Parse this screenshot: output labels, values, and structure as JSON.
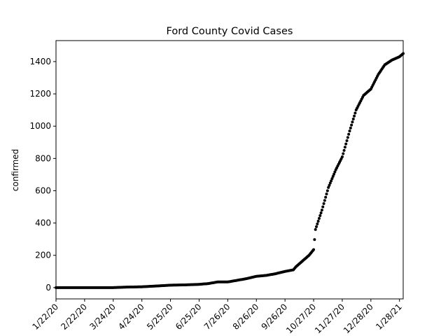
{
  "chart_data": {
    "type": "scatter",
    "title": "Ford County Covid Cases",
    "xlabel": "",
    "ylabel": "confirmed",
    "x_ticks": [
      "1/22/20",
      "2/22/20",
      "3/24/20",
      "4/24/20",
      "5/25/20",
      "6/25/20",
      "7/26/20",
      "8/26/20",
      "9/26/20",
      "10/27/20",
      "11/27/20",
      "12/28/20",
      "1/28/21"
    ],
    "y_ticks": [
      0,
      200,
      400,
      600,
      800,
      1000,
      1200,
      1400
    ],
    "ylim": [
      -70,
      1530
    ],
    "xlim": [
      "1/22/20",
      "2/1/21"
    ],
    "grid": false,
    "marker_color": "#000000",
    "series": [
      {
        "name": "",
        "x": [
          "1/22/20",
          "3/24/20",
          "4/7/20",
          "4/24/20",
          "5/10/20",
          "5/25/20",
          "6/10/20",
          "6/25/20",
          "7/5/20",
          "7/15/20",
          "7/26/20",
          "8/5/20",
          "8/15/20",
          "8/26/20",
          "9/5/20",
          "9/15/20",
          "9/26/20",
          "10/5/20",
          "10/8/20",
          "10/15/20",
          "10/22/20",
          "10/27/20",
          "10/29/20",
          "11/5/20",
          "11/12/20",
          "11/20/20",
          "11/27/20",
          "12/5/20",
          "12/12/20",
          "12/20/20",
          "12/28/20",
          "1/5/21",
          "1/12/21",
          "1/20/21",
          "1/28/21",
          "2/1/21"
        ],
        "y": [
          0,
          0,
          3,
          5,
          10,
          15,
          17,
          20,
          25,
          35,
          35,
          45,
          55,
          70,
          75,
          85,
          100,
          110,
          130,
          165,
          200,
          235,
          360,
          480,
          620,
          730,
          810,
          970,
          1100,
          1190,
          1230,
          1320,
          1380,
          1410,
          1430,
          1450
        ]
      }
    ]
  }
}
